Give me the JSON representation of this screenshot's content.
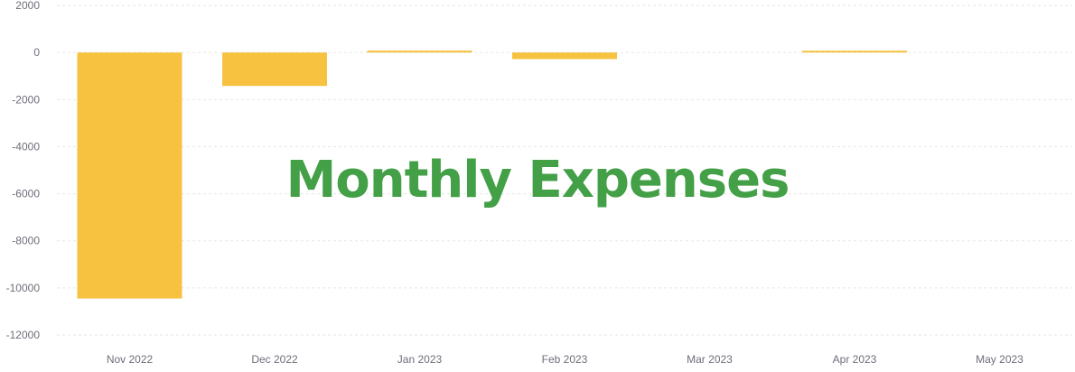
{
  "chart_data": {
    "type": "bar",
    "title": "Monthly Expenses",
    "categories": [
      "Nov 2022",
      "Dec 2022",
      "Jan 2023",
      "Feb 2023",
      "Mar 2023",
      "Apr 2023",
      "May 2023"
    ],
    "values": [
      -10450,
      -1420,
      80,
      -280,
      0,
      20,
      0
    ],
    "xlabel": "",
    "ylabel": "",
    "ylim": [
      -12000,
      2000
    ],
    "yticks": [
      2000,
      0,
      -2000,
      -4000,
      -6000,
      -8000,
      -10000,
      -12000
    ],
    "grid": true,
    "legend": "none",
    "colors": {
      "bar": "#f6c240",
      "title": "#43a047",
      "grid": "#e6e6e6",
      "tick_text": "#6e6e7a"
    }
  }
}
